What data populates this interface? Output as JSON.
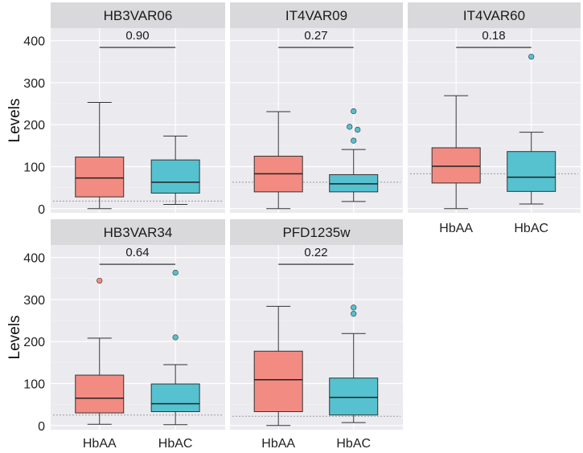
{
  "chart_data": {
    "type": "box",
    "ylabel": "Levels",
    "ylim": [
      -10,
      430
    ],
    "yticks": [
      0,
      100,
      200,
      300,
      400
    ],
    "categories": [
      "HbAA",
      "HbAC"
    ],
    "colors": {
      "HbAA": "#f28b82",
      "HbAC": "#56c1cf"
    },
    "panels": [
      {
        "title": "HB3VAR06",
        "p_value": "0.90",
        "reference_line": 18,
        "boxes": [
          {
            "min": 0,
            "q1": 28,
            "median": 73,
            "q3": 123,
            "max": 253,
            "outliers": []
          },
          {
            "min": 10,
            "q1": 37,
            "median": 63,
            "q3": 116,
            "max": 173,
            "outliers": []
          }
        ]
      },
      {
        "title": "IT4VAR09",
        "p_value": "0.27",
        "reference_line": 63,
        "boxes": [
          {
            "min": 0,
            "q1": 40,
            "median": 83,
            "q3": 125,
            "max": 231,
            "outliers": []
          },
          {
            "min": 17,
            "q1": 40,
            "median": 59,
            "q3": 81,
            "max": 141,
            "outliers": [
              232,
              195,
              188,
              162
            ]
          }
        ]
      },
      {
        "title": "IT4VAR60",
        "p_value": "0.18",
        "reference_line": 83,
        "boxes": [
          {
            "min": 0,
            "q1": 61,
            "median": 101,
            "q3": 145,
            "max": 269,
            "outliers": []
          },
          {
            "min": 11,
            "q1": 41,
            "median": 75,
            "q3": 136,
            "max": 182,
            "outliers": [
              362
            ]
          }
        ]
      },
      {
        "title": "HB3VAR34",
        "p_value": "0.64",
        "reference_line": 25,
        "boxes": [
          {
            "min": 3,
            "q1": 30,
            "median": 65,
            "q3": 120,
            "max": 208,
            "outliers": [
              345
            ]
          },
          {
            "min": 2,
            "q1": 33,
            "median": 52,
            "q3": 99,
            "max": 145,
            "outliers": [
              364,
              210
            ]
          }
        ]
      },
      {
        "title": "PFD1235w",
        "p_value": "0.22",
        "reference_line": 22,
        "boxes": [
          {
            "min": 0,
            "q1": 33,
            "median": 109,
            "q3": 177,
            "max": 284,
            "outliers": []
          },
          {
            "min": 7,
            "q1": 25,
            "median": 67,
            "q3": 113,
            "max": 219,
            "outliers": [
              281,
              266
            ]
          }
        ]
      }
    ],
    "bracket_y": 384
  }
}
